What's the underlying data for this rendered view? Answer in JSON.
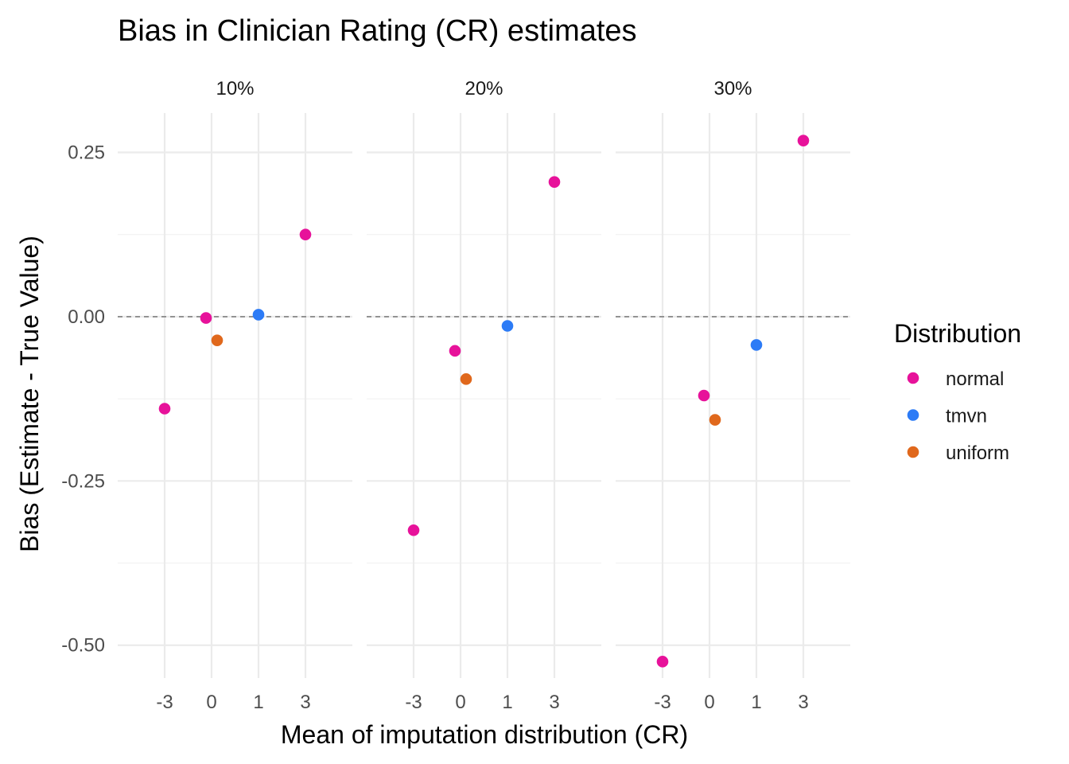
{
  "chart_data": {
    "type": "scatter",
    "title": "Bias in Clinician Rating (CR) estimates",
    "xlabel": "Mean of imputation distribution (CR)",
    "ylabel": "Bias (Estimate - True Value)",
    "x_categories": [
      "-3",
      "0",
      "1",
      "3"
    ],
    "ylim": [
      -0.55,
      0.31
    ],
    "y_ticks": [
      0.25,
      0.0,
      -0.25,
      -0.5
    ],
    "y_tick_labels": [
      "0.25",
      "0.00",
      "-0.25",
      "-0.50"
    ],
    "reference_line": {
      "y": 0,
      "style": "dashed"
    },
    "grid": true,
    "legend": {
      "title": "Distribution",
      "position": "right",
      "entries": [
        {
          "name": "normal",
          "color": "#E7129A"
        },
        {
          "name": "tmvn",
          "color": "#2C7BF6"
        },
        {
          "name": "uniform",
          "color": "#E0681C"
        }
      ]
    },
    "facets": [
      {
        "label": "10%",
        "points": [
          {
            "series": "normal",
            "x": "-3",
            "y": -0.14
          },
          {
            "series": "normal",
            "x": "0",
            "y": -0.002
          },
          {
            "series": "uniform",
            "x": "0",
            "y": -0.036
          },
          {
            "series": "tmvn",
            "x": "1",
            "y": 0.003
          },
          {
            "series": "normal",
            "x": "3",
            "y": 0.125
          }
        ]
      },
      {
        "label": "20%",
        "points": [
          {
            "series": "normal",
            "x": "-3",
            "y": -0.325
          },
          {
            "series": "normal",
            "x": "0",
            "y": -0.052
          },
          {
            "series": "uniform",
            "x": "0",
            "y": -0.095
          },
          {
            "series": "tmvn",
            "x": "1",
            "y": -0.014
          },
          {
            "series": "normal",
            "x": "3",
            "y": 0.205
          }
        ]
      },
      {
        "label": "30%",
        "points": [
          {
            "series": "normal",
            "x": "-3",
            "y": -0.525
          },
          {
            "series": "normal",
            "x": "0",
            "y": -0.12
          },
          {
            "series": "uniform",
            "x": "0",
            "y": -0.157
          },
          {
            "series": "tmvn",
            "x": "1",
            "y": -0.043
          },
          {
            "series": "normal",
            "x": "3",
            "y": 0.268
          }
        ]
      }
    ]
  }
}
